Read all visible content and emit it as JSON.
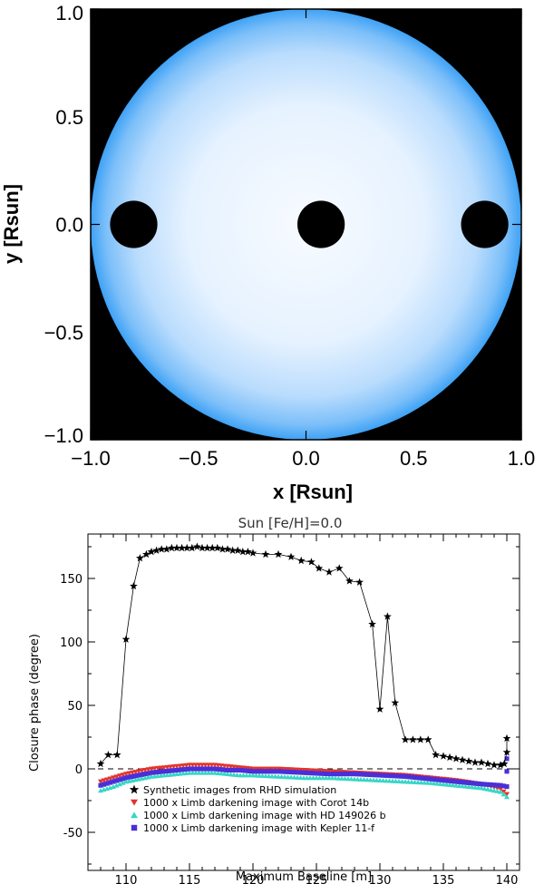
{
  "chart_data": [
    {
      "type": "image",
      "xlabel": "x [Rsun]",
      "ylabel": "y [Rsun]",
      "xlim": [
        -1.0,
        1.0
      ],
      "ylim": [
        -1.0,
        1.0
      ],
      "xticks": [
        "−1.0",
        "−0.5",
        "0.0",
        "0.5",
        "1.0"
      ],
      "yticks": [
        "1.0",
        "0.5",
        "0.0",
        "−0.5",
        "−1.0"
      ],
      "xtick_values": [
        -1.0,
        -0.5,
        0.0,
        0.5,
        1.0
      ],
      "ytick_values": [
        1.0,
        0.5,
        0.0,
        -0.5,
        -1.0
      ],
      "disk": {
        "cx": 0.0,
        "cy": 0.0,
        "r": 1.0,
        "center_color": "#f7fbff",
        "limb_color": "#3fa2f5"
      },
      "planets": [
        {
          "x": -0.8,
          "y": 0.0,
          "r": 0.11
        },
        {
          "x": 0.07,
          "y": 0.0,
          "r": 0.11
        },
        {
          "x": 0.83,
          "y": 0.0,
          "r": 0.11
        }
      ]
    },
    {
      "type": "scatter",
      "title": "Sun [Fe/H]=0.0",
      "xlabel": "Maximum Baseline [m]",
      "ylabel": "Closure phase (degree)",
      "xlim": [
        107,
        141
      ],
      "ylim": [
        -80,
        185
      ],
      "xticks": [
        110,
        115,
        120,
        125,
        130,
        135,
        140
      ],
      "yticks": [
        -50,
        0,
        50,
        100,
        150
      ],
      "zero_line": 0,
      "series": [
        {
          "name": "Synthetic images from RHD simulation",
          "marker": "star",
          "color": "#000000",
          "x": [
            108.0,
            108.6,
            109.3,
            110.0,
            110.6,
            111.1,
            111.6,
            112.0,
            112.4,
            112.8,
            113.2,
            113.6,
            114.0,
            114.4,
            114.8,
            115.2,
            115.6,
            116.0,
            116.4,
            116.8,
            117.2,
            117.6,
            118.0,
            118.4,
            118.8,
            119.2,
            119.6,
            120.0,
            121.0,
            122.0,
            123.0,
            123.8,
            124.6,
            125.2,
            126.0,
            126.8,
            127.6,
            128.4,
            129.4,
            130.0,
            130.6,
            131.2,
            132.0,
            132.6,
            133.2,
            133.8,
            134.4,
            135.0,
            135.5,
            136.0,
            136.5,
            137.0,
            137.5,
            138.0,
            138.5,
            139.0,
            139.5,
            139.8,
            140.0,
            140.0
          ],
          "y": [
            4,
            11,
            11,
            102,
            144,
            166,
            169,
            171,
            172,
            173,
            173,
            174,
            174,
            174,
            174,
            174,
            175,
            174,
            174,
            174,
            174,
            173,
            173,
            172,
            172,
            171,
            171,
            170,
            169,
            169,
            167,
            164,
            163,
            158,
            155,
            158,
            148,
            147,
            114,
            47,
            120,
            52,
            23,
            23,
            23,
            23,
            11,
            10,
            9,
            8,
            7,
            6,
            5,
            5,
            4,
            3,
            3,
            4,
            13,
            24
          ]
        },
        {
          "name": "1000 x Limb darkening image with Corot 14b",
          "marker": "triangle-down",
          "color": "#e5332a",
          "x": [
            108.0,
            109.0,
            110.0,
            111.0,
            112.0,
            113.0,
            114.0,
            115.0,
            116.0,
            117.0,
            118.0,
            119.0,
            120.0,
            122.0,
            124.0,
            126.0,
            128.0,
            130.0,
            132.0,
            134.0,
            136.0,
            138.0,
            139.5,
            140.0
          ],
          "y": [
            -10,
            -7,
            -4,
            -2,
            0,
            1,
            2,
            3,
            3,
            3,
            2,
            1,
            0,
            0,
            -1,
            -2,
            -3,
            -4,
            -5,
            -7,
            -9,
            -12,
            -16,
            -20
          ]
        },
        {
          "name": "1000 x Limb darkening image with HD 149026 b",
          "marker": "triangle-up",
          "color": "#37d6c6",
          "x": [
            108.0,
            109.0,
            110.0,
            111.0,
            112.0,
            113.0,
            114.0,
            115.0,
            116.0,
            117.0,
            118.0,
            119.0,
            120.0,
            122.0,
            124.0,
            126.0,
            128.0,
            130.0,
            132.0,
            134.0,
            136.0,
            138.0,
            139.5,
            140.0
          ],
          "y": [
            -17,
            -14,
            -10,
            -8,
            -6,
            -5,
            -4,
            -3,
            -3,
            -3,
            -4,
            -5,
            -5,
            -6,
            -7,
            -7,
            -8,
            -9,
            -10,
            -11,
            -13,
            -15,
            -18,
            -22
          ]
        },
        {
          "name": "1000 x Limb darkening image with Kepler 11-f",
          "marker": "square",
          "color": "#4b2fd8",
          "x": [
            108.0,
            109.0,
            110.0,
            111.0,
            112.0,
            113.0,
            114.0,
            115.0,
            116.0,
            117.0,
            118.0,
            119.0,
            120.0,
            122.0,
            124.0,
            126.0,
            128.0,
            130.0,
            132.0,
            134.0,
            136.0,
            138.0,
            139.5,
            140.0,
            140.0,
            140.0
          ],
          "y": [
            -13,
            -10,
            -7,
            -5,
            -3,
            -2,
            -1,
            0,
            0,
            0,
            -1,
            -1,
            -2,
            -2,
            -3,
            -4,
            -4,
            -5,
            -6,
            -8,
            -10,
            -12,
            -13,
            -14,
            -2,
            8
          ]
        }
      ],
      "legend_position": "bottom-left"
    }
  ]
}
